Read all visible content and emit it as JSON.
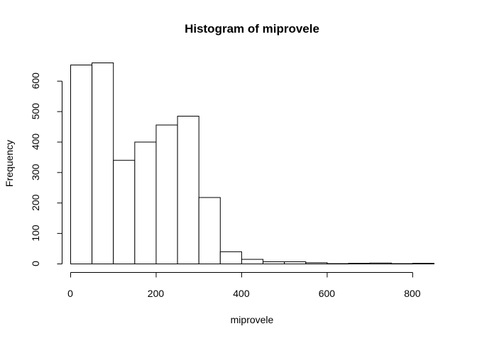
{
  "chart_data": {
    "type": "bar",
    "title": "Histogram of miprovele",
    "xlabel": "miprovele",
    "ylabel": "Frequency",
    "bin_width": 50,
    "bins": [
      {
        "start": 0,
        "end": 50,
        "count": 653
      },
      {
        "start": 50,
        "end": 100,
        "count": 660
      },
      {
        "start": 100,
        "end": 150,
        "count": 340
      },
      {
        "start": 150,
        "end": 200,
        "count": 400
      },
      {
        "start": 200,
        "end": 250,
        "count": 456
      },
      {
        "start": 250,
        "end": 300,
        "count": 485
      },
      {
        "start": 300,
        "end": 350,
        "count": 218
      },
      {
        "start": 350,
        "end": 400,
        "count": 40
      },
      {
        "start": 400,
        "end": 450,
        "count": 15
      },
      {
        "start": 450,
        "end": 500,
        "count": 7
      },
      {
        "start": 500,
        "end": 550,
        "count": 7
      },
      {
        "start": 550,
        "end": 600,
        "count": 4
      },
      {
        "start": 600,
        "end": 650,
        "count": 1
      },
      {
        "start": 650,
        "end": 700,
        "count": 2
      },
      {
        "start": 700,
        "end": 750,
        "count": 3
      },
      {
        "start": 750,
        "end": 800,
        "count": 1
      },
      {
        "start": 800,
        "end": 850,
        "count": 2
      }
    ],
    "xlim": [
      0,
      850
    ],
    "ylim": [
      0,
      660
    ],
    "x_ticks": [
      0,
      200,
      400,
      600,
      800
    ],
    "y_ticks": [
      0,
      100,
      200,
      300,
      400,
      500,
      600
    ],
    "grid": false,
    "colors": {
      "bar_fill": "#ffffff",
      "bar_stroke": "#000000"
    }
  }
}
